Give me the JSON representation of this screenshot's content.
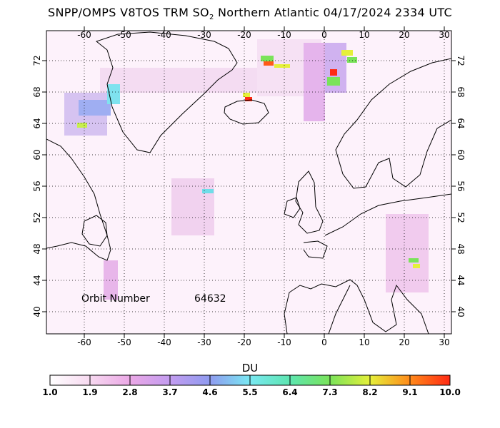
{
  "title": {
    "prefix": "SNPP/OMPS V8TOS TRM SO",
    "subscript": "2",
    "suffix": " Northern Atlantic 04/17/2024 2334 UTC"
  },
  "axes": {
    "longitude_ticks": [
      "-60",
      "-50",
      "-40",
      "-30",
      "-20",
      "-10",
      "0",
      "10",
      "20",
      "30"
    ],
    "latitude_ticks": [
      "72",
      "68",
      "64",
      "60",
      "56",
      "52",
      "48",
      "44",
      "40"
    ]
  },
  "annotation": {
    "label": "Orbit Number",
    "value": "64632"
  },
  "colorbar": {
    "title": "DU",
    "labels": [
      "1.0",
      "1.9",
      "2.8",
      "3.7",
      "4.6",
      "5.5",
      "6.4",
      "7.3",
      "8.2",
      "9.1",
      "10.0"
    ],
    "colors": [
      "#ffffff",
      "#f7d9f0",
      "#eba8e6",
      "#c39cf0",
      "#8f9bf0",
      "#79e8f2",
      "#5de6b0",
      "#7ae35a",
      "#e5f03a",
      "#ff8a1a",
      "#ff2a14"
    ]
  },
  "map": {
    "projection": "cylindrical",
    "lon_range": [
      -68,
      32
    ],
    "lat_range": [
      38.3,
      74.8
    ],
    "grid": true
  }
}
